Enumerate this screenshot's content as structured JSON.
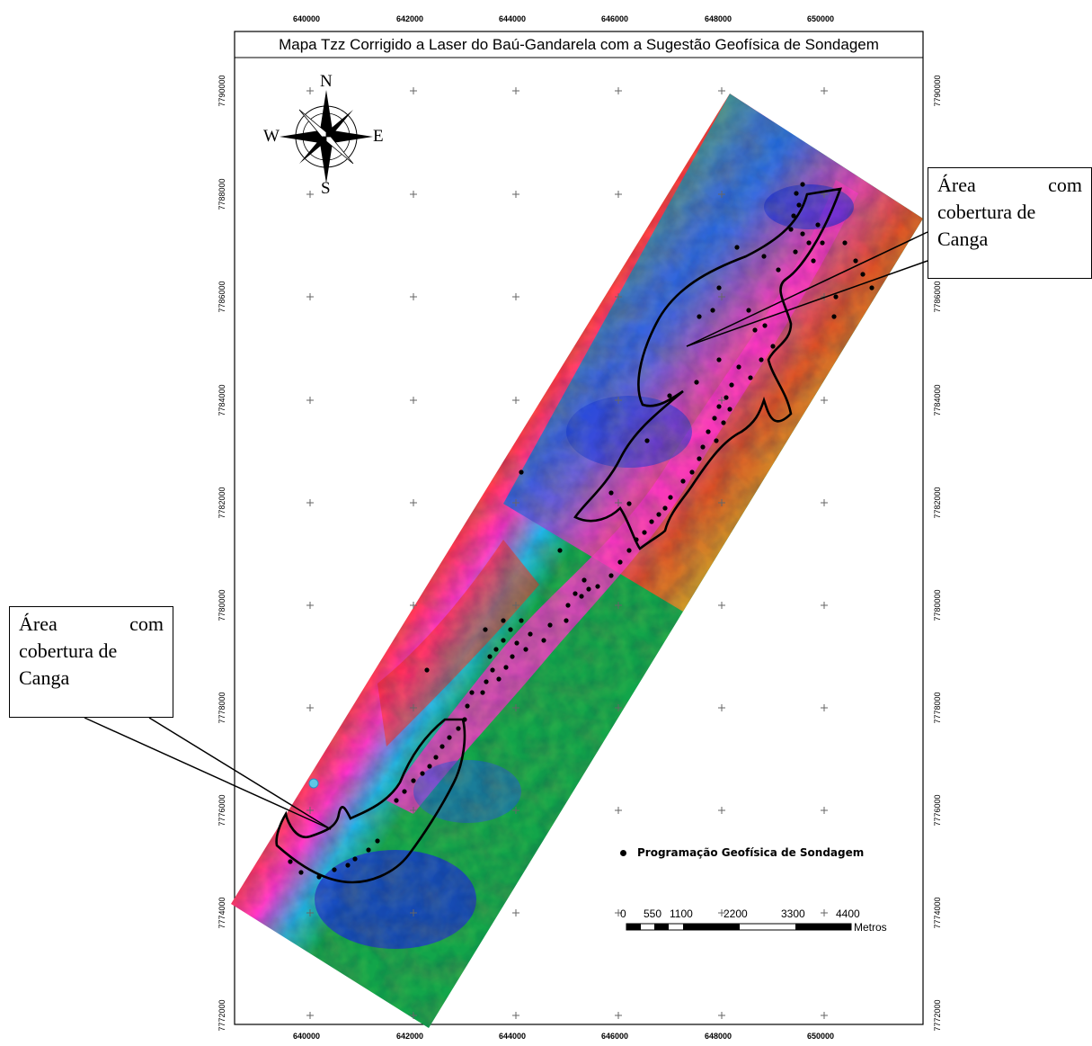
{
  "map": {
    "title": "Mapa Tzz Corrigido a Laser do Baú-Gandarela com a Sugestão Geofísica de Sondagem",
    "x_labels": [
      "640000",
      "642000",
      "644000",
      "646000",
      "648000",
      "650000"
    ],
    "y_labels": [
      "7790000",
      "7788000",
      "7786000",
      "7784000",
      "7782000",
      "7780000",
      "7778000",
      "7776000",
      "7774000",
      "7772000"
    ]
  },
  "compass": {
    "n": "N",
    "s": "S",
    "e": "E",
    "w": "W"
  },
  "callouts": {
    "right": {
      "word1": "Área",
      "word2": "com",
      "line2": "cobertura de",
      "line3": "Canga"
    },
    "left": {
      "word1": "Área",
      "word2": "com",
      "line2": "cobertura de",
      "line3": "Canga"
    }
  },
  "legend": {
    "label": "Programação Geofísica de Sondagem",
    "symbol": "black-dot"
  },
  "scalebar": {
    "ticks": [
      "0",
      "550",
      "1100",
      "2200",
      "3300",
      "4400"
    ],
    "unit": "Metros"
  },
  "colors": {
    "anomaly_high": "#ff33cc",
    "anomaly_mid": "#ff2222",
    "anomaly_low": "#0033dd"
  }
}
